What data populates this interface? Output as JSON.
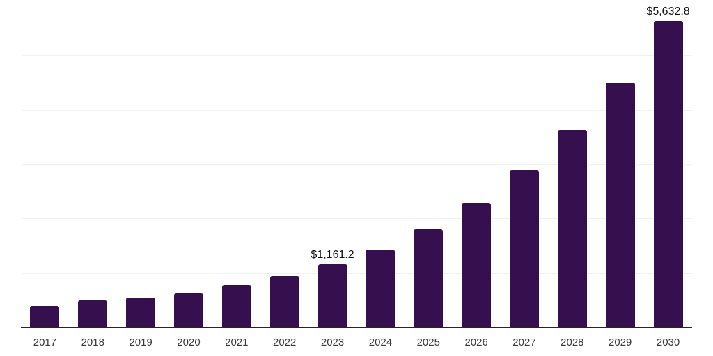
{
  "chart_data": {
    "type": "bar",
    "title": "",
    "xlabel": "",
    "ylabel": "",
    "categories": [
      "2017",
      "2018",
      "2019",
      "2020",
      "2021",
      "2022",
      "2023",
      "2024",
      "2025",
      "2026",
      "2027",
      "2028",
      "2029",
      "2030"
    ],
    "values": [
      390,
      497,
      548,
      628,
      775,
      948,
      1161.2,
      1435,
      1795,
      2280,
      2880,
      3630,
      4500,
      5632.8
    ],
    "data_labels": [
      "",
      "",
      "",
      "",
      "",
      "",
      "$1,161.2",
      "",
      "",
      "",
      "",
      "",
      "",
      "$5,632.8"
    ],
    "ylim": [
      0,
      6000
    ],
    "grid_step": 1000,
    "grid_on": true,
    "legend_position": "none",
    "bar_color": "#36104e",
    "axis_line_color": "#262626",
    "gridline_color": "#f1f1f1",
    "tick_label_color": "#3a3a3a",
    "data_label_color": "#121212",
    "background_color": "#ffffff"
  }
}
